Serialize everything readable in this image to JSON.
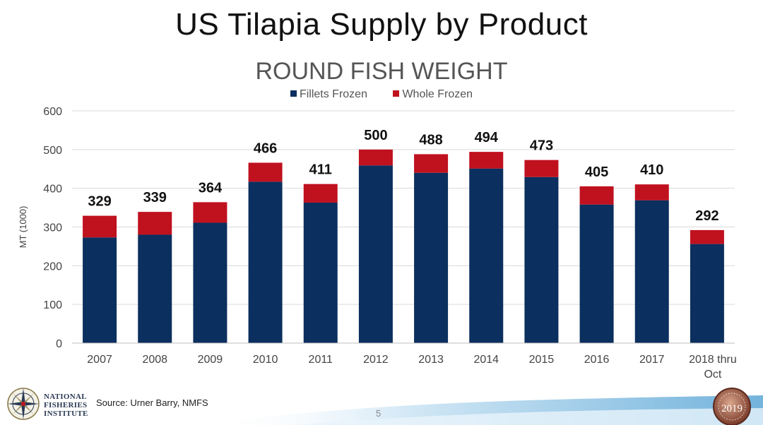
{
  "slide": {
    "title": "US Tilapia Supply by Product",
    "source": "Source: Urner Barry, NMFS",
    "page_number": "5",
    "logo_lines": [
      "NATIONAL",
      "FISHERIES",
      "INSTITUTE"
    ],
    "seal_year": "2019"
  },
  "colors": {
    "fillets": "#0b2f5e",
    "whole": "#c0111f",
    "grid": "#d9d9d9",
    "wave": "#5aa6d6"
  },
  "chart_data": {
    "type": "bar",
    "stacked": true,
    "title": "ROUND FISH WEIGHT",
    "xlabel": "",
    "ylabel": "MT (1000)",
    "ylim": [
      0,
      600
    ],
    "yticks": [
      0,
      100,
      200,
      300,
      400,
      500,
      600
    ],
    "grid": true,
    "legend_position": "top",
    "categories": [
      "2007",
      "2008",
      "2009",
      "2010",
      "2011",
      "2012",
      "2013",
      "2014",
      "2015",
      "2016",
      "2017",
      "2018 thru Oct"
    ],
    "series": [
      {
        "name": "Fillets Frozen",
        "values": [
          273,
          280,
          311,
          417,
          363,
          459,
          440,
          451,
          429,
          358,
          369,
          256
        ]
      },
      {
        "name": "Whole Frozen",
        "values": [
          56,
          59,
          53,
          49,
          48,
          41,
          48,
          43,
          44,
          47,
          41,
          36
        ]
      }
    ],
    "totals": [
      329,
      339,
      364,
      466,
      411,
      500,
      488,
      494,
      473,
      405,
      410,
      292
    ]
  }
}
